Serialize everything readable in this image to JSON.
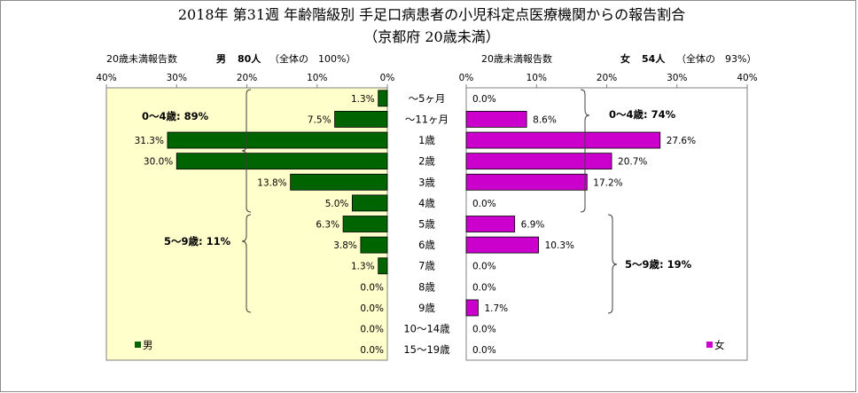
{
  "title_line1": "2018年 第31週 年齢階級別 手足口病患者の小児科定点医療機関からの報告割合",
  "title_line2": "（京都府 20歳未満）",
  "left_header": {
    "caption": "20歳未満報告数",
    "gender": "男",
    "count": "80人",
    "share": "（全体の　100%）"
  },
  "right_header": {
    "caption": "20歳未満報告数",
    "gender": "女",
    "count": "54人",
    "share": "（全体の　93%）"
  },
  "colors": {
    "male_bar": "#006400",
    "female_bar": "#cc00cc",
    "left_plot_bg": "#ffffcc",
    "right_plot_bg": "#ffffff"
  },
  "chart_data": {
    "type": "bar",
    "orientation": "horizontal-population-pyramid",
    "categories": [
      "～5ヶ月",
      "～11ヶ月",
      "1歳",
      "2歳",
      "3歳",
      "4歳",
      "5歳",
      "6歳",
      "7歳",
      "8歳",
      "9歳",
      "10～14歳",
      "15～19歳"
    ],
    "series": [
      {
        "name": "男",
        "values": [
          1.3,
          7.5,
          31.3,
          30.0,
          13.8,
          5.0,
          6.3,
          3.8,
          1.3,
          0.0,
          0.0,
          0.0,
          0.0
        ],
        "labels": [
          "1.3%",
          "7.5%",
          "31.3%",
          "30.0%",
          "13.8%",
          "5.0%",
          "6.3%",
          "3.8%",
          "1.3%",
          "0.0%",
          "0.0%",
          "0.0%",
          "0.0%"
        ]
      },
      {
        "name": "女",
        "values": [
          0.0,
          8.6,
          27.6,
          20.7,
          17.2,
          0.0,
          6.9,
          10.3,
          0.0,
          0.0,
          1.7,
          0.0,
          0.0
        ],
        "labels": [
          "0.0%",
          "8.6%",
          "27.6%",
          "20.7%",
          "17.2%",
          "0.0%",
          "6.9%",
          "10.3%",
          "0.0%",
          "0.0%",
          "1.7%",
          "0.0%",
          "0.0%"
        ]
      }
    ],
    "xlim": [
      0,
      40
    ],
    "left_ticks": [
      "40%",
      "30%",
      "20%",
      "10%",
      "0%"
    ],
    "right_ticks": [
      "0%",
      "10%",
      "20%",
      "30%",
      "40%"
    ],
    "annotations": {
      "male_0_4": "0～4歳: 89%",
      "male_5_9": "5～9歳: 11%",
      "female_0_4": "0～4歳: 74%",
      "female_5_9": "5～9歳: 19%"
    },
    "legend_left": "男",
    "legend_right": "女",
    "grid": false
  }
}
